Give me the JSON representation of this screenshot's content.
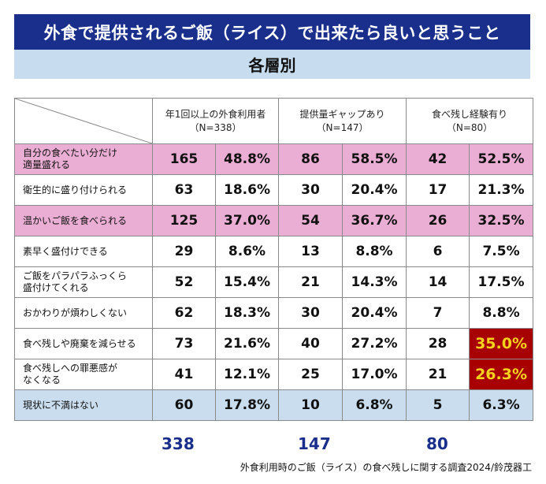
{
  "title": "外食で提供されるご飯（ライス）で出来たら良いと思うこと",
  "subtitle": "各層別",
  "chart_data": {
    "type": "table",
    "columns": [
      {
        "name": "年1回以上の外食利用者",
        "n_label": "（N=338）",
        "total": "338"
      },
      {
        "name": "提供量ギャップあり",
        "n_label": "（N=147）",
        "total": "147"
      },
      {
        "name": "食べ残し経験有り",
        "n_label": "（N=80）",
        "total": "80"
      }
    ],
    "rows": [
      {
        "label": "自分の食べたい分だけ\n適量盛れる",
        "style": "pink",
        "cells": [
          {
            "n": "165",
            "pct": "48.8%"
          },
          {
            "n": "86",
            "pct": "58.5%"
          },
          {
            "n": "42",
            "pct": "52.5%"
          }
        ]
      },
      {
        "label": "衛生的に盛り付けられる",
        "style": "",
        "cells": [
          {
            "n": "63",
            "pct": "18.6%"
          },
          {
            "n": "30",
            "pct": "20.4%"
          },
          {
            "n": "17",
            "pct": "21.3%"
          }
        ]
      },
      {
        "label": "温かいご飯を食べられる",
        "style": "pink",
        "cells": [
          {
            "n": "125",
            "pct": "37.0%"
          },
          {
            "n": "54",
            "pct": "36.7%"
          },
          {
            "n": "26",
            "pct": "32.5%"
          }
        ]
      },
      {
        "label": "素早く盛付けできる",
        "style": "",
        "cells": [
          {
            "n": "29",
            "pct": "8.6%"
          },
          {
            "n": "13",
            "pct": "8.8%"
          },
          {
            "n": "6",
            "pct": "7.5%"
          }
        ]
      },
      {
        "label": "ご飯をパラパラふっくら\n盛付けてくれる",
        "style": "",
        "cells": [
          {
            "n": "52",
            "pct": "15.4%"
          },
          {
            "n": "21",
            "pct": "14.3%"
          },
          {
            "n": "14",
            "pct": "17.5%"
          }
        ]
      },
      {
        "label": "おかわりが煩わしくない",
        "style": "",
        "cells": [
          {
            "n": "62",
            "pct": "18.3%"
          },
          {
            "n": "30",
            "pct": "20.4%"
          },
          {
            "n": "7",
            "pct": "8.8%"
          }
        ]
      },
      {
        "label": "食べ残しや廃棄を減らせる",
        "style": "",
        "cells": [
          {
            "n": "73",
            "pct": "21.6%"
          },
          {
            "n": "40",
            "pct": "27.2%"
          },
          {
            "n": "28",
            "pct": "35.0%",
            "highlight": true
          }
        ]
      },
      {
        "label": "食べ残しへの罪悪感が\nなくなる",
        "style": "",
        "cells": [
          {
            "n": "41",
            "pct": "12.1%"
          },
          {
            "n": "25",
            "pct": "17.0%"
          },
          {
            "n": "21",
            "pct": "26.3%",
            "highlight": true
          }
        ]
      },
      {
        "label": "現状に不満はない",
        "style": "blue",
        "cells": [
          {
            "n": "60",
            "pct": "17.8%"
          },
          {
            "n": "10",
            "pct": "6.8%"
          },
          {
            "n": "5",
            "pct": "6.3%"
          }
        ]
      }
    ]
  },
  "source": "外食利用時のご飯（ライス）の食べ残しに関する調査2024/鈴茂器工",
  "colors": {
    "title_bg": "#1a2f8c",
    "subtitle_bg": "#c7ddef",
    "pink_row": "#eaaed4",
    "blue_row": "#c9ddee",
    "highlight_bg": "#a80000",
    "highlight_text": "#f7d21a"
  }
}
